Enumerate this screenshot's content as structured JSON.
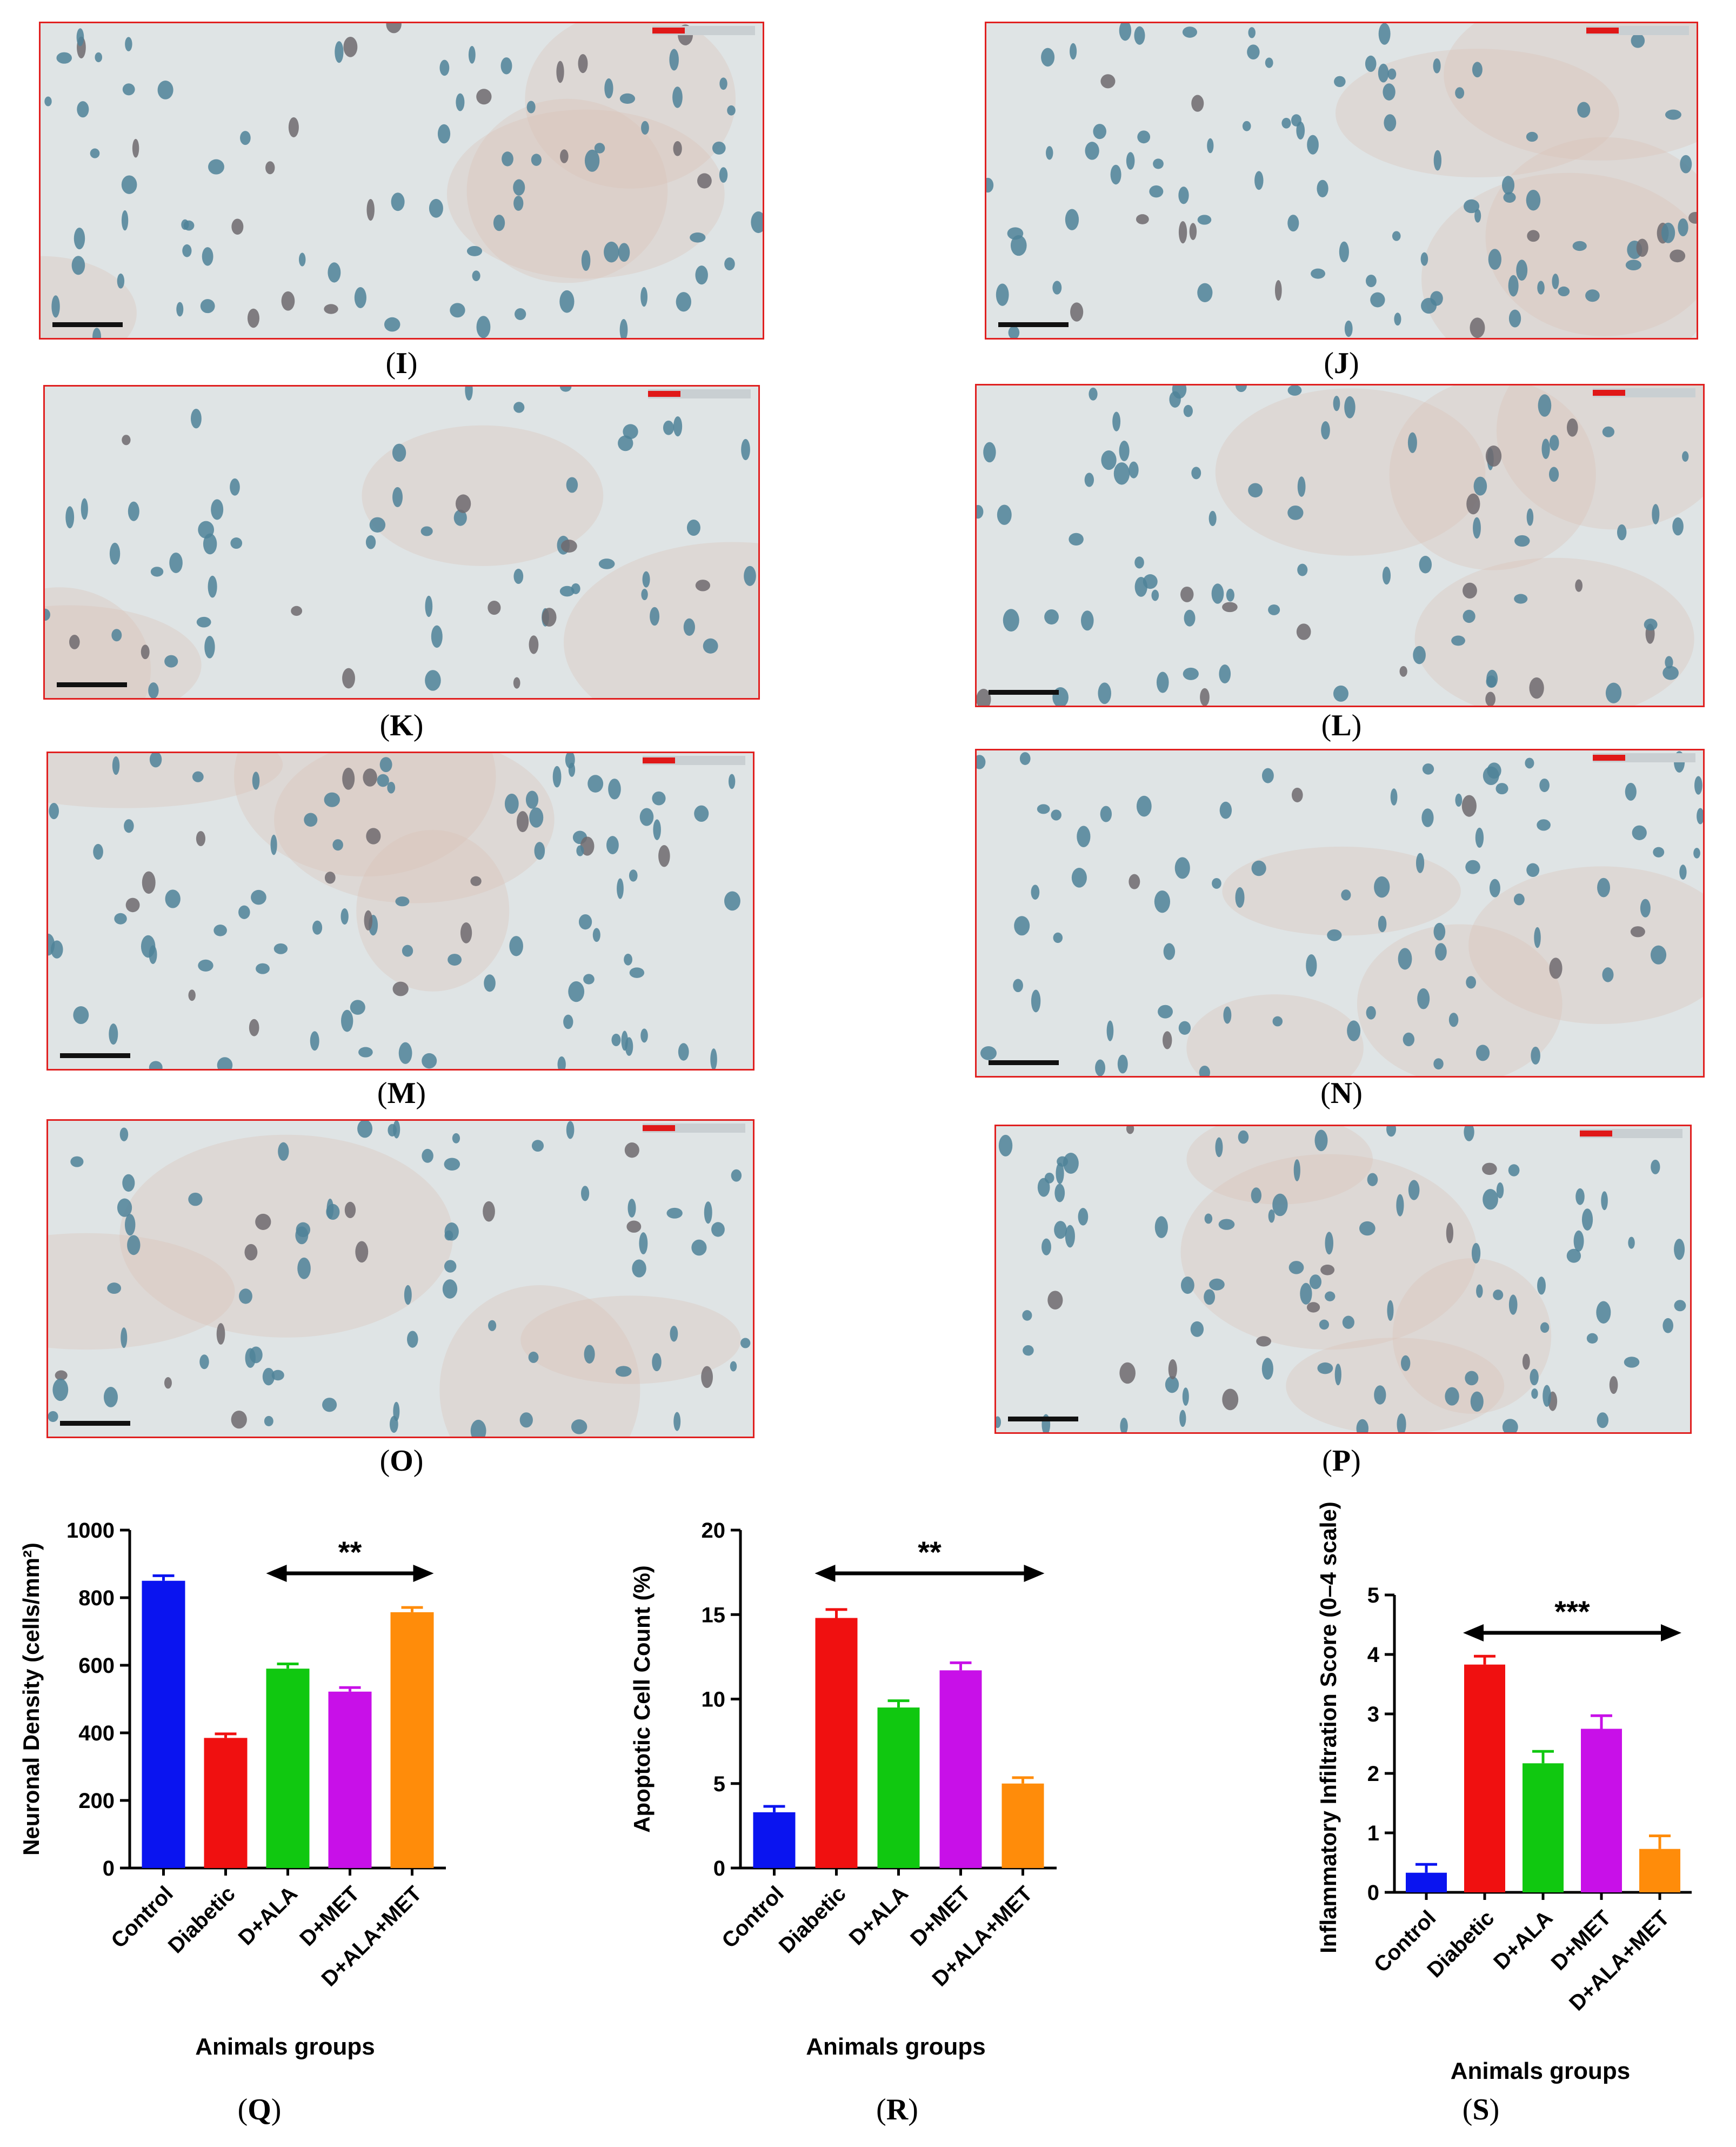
{
  "panels": [
    {
      "id": "I"
    },
    {
      "id": "J"
    },
    {
      "id": "K"
    },
    {
      "id": "L"
    },
    {
      "id": "M"
    },
    {
      "id": "N"
    },
    {
      "id": "O"
    },
    {
      "id": "P"
    }
  ],
  "captions": {
    "I": "I",
    "J": "J",
    "K": "K",
    "L": "L",
    "M": "M",
    "N": "N",
    "O": "O",
    "P": "P",
    "Q": "Q",
    "R": "R",
    "S": "S"
  },
  "colors": {
    "Control": "#0a14f0",
    "Diabetic": "#f01010",
    "D+ALA": "#10c810",
    "D+MET": "#c810e8",
    "D+ALA+MET": "#ff8c0a",
    "frame": "#e02020"
  },
  "chart_data": [
    {
      "type": "bar",
      "panel": "Q",
      "categories": [
        "Control",
        "Diabetic",
        "D+ALA",
        "D+MET",
        "D+ALA+MET"
      ],
      "values": [
        850,
        385,
        590,
        522,
        757
      ],
      "errors": [
        15,
        12,
        14,
        12,
        14
      ],
      "ylabel": "Neuronal Density (cells/mm²)",
      "xlabel": "Animals groups",
      "ylim": [
        0,
        1000
      ],
      "yticks": [
        "0",
        "200",
        "400",
        "600",
        "800",
        "1000"
      ],
      "significance": {
        "label": "**",
        "from": "D+ALA",
        "to": "D+ALA+MET"
      }
    },
    {
      "type": "bar",
      "panel": "R",
      "categories": [
        "Control",
        "Diabetic",
        "D+ALA",
        "D+MET",
        "D+ALA+MET"
      ],
      "values": [
        3.3,
        14.8,
        9.5,
        11.7,
        5.0
      ],
      "errors": [
        0.35,
        0.5,
        0.4,
        0.45,
        0.35
      ],
      "ylabel": "Apoptotic Cell Count (%)",
      "xlabel": "Animals groups",
      "ylim": [
        0,
        20
      ],
      "yticks": [
        "0",
        "5",
        "10",
        "15",
        "20"
      ],
      "significance": {
        "label": "**",
        "from": "Diabetic",
        "to": "D+ALA+MET"
      }
    },
    {
      "type": "bar",
      "panel": "S",
      "categories": [
        "Control",
        "Diabetic",
        "D+ALA",
        "D+MET",
        "D+ALA+MET"
      ],
      "values": [
        0.33,
        3.83,
        2.17,
        2.75,
        0.73
      ],
      "errors": [
        0.14,
        0.14,
        0.2,
        0.22,
        0.22
      ],
      "ylabel": "Inflammatory Infiltration Score (0–4 scale)",
      "xlabel": "Animals groups",
      "ylim": [
        0,
        5
      ],
      "yticks": [
        "0",
        "1",
        "2",
        "3",
        "4",
        "5"
      ],
      "significance": {
        "label": "***",
        "from": "Diabetic",
        "to": "D+ALA+MET"
      }
    }
  ]
}
